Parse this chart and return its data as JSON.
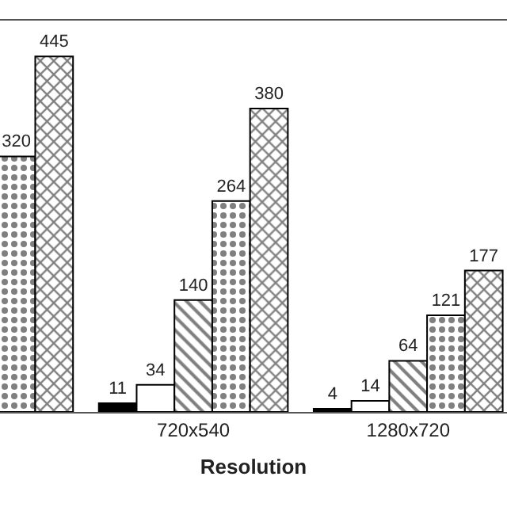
{
  "chart_data": {
    "type": "bar",
    "xlabel": "Resolution",
    "categories": [
      null,
      "720x540",
      "1280x720"
    ],
    "data_labels": true,
    "ylim": [
      0,
      490
    ],
    "series": [
      {
        "color": "#000000",
        "values": [
          null,
          11,
          4
        ]
      },
      {
        "color": "#ffffff",
        "values": [
          null,
          34,
          14
        ]
      },
      {
        "color": "#000000",
        "values": [
          null,
          140,
          64
        ]
      },
      {
        "color": "#000000",
        "values": [
          320,
          264,
          121
        ]
      },
      {
        "color": "#000000",
        "values": [
          445,
          380,
          177
        ]
      }
    ]
  }
}
